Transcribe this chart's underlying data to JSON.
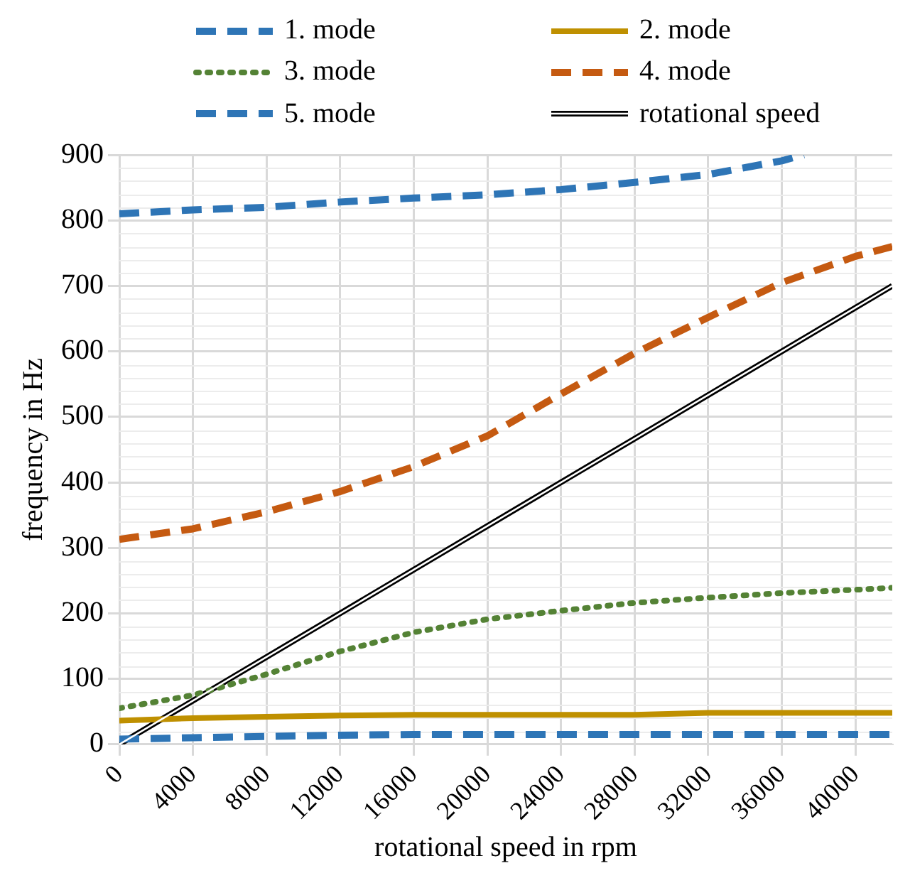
{
  "chart_data": {
    "type": "line",
    "xlabel": "rotational speed in rpm",
    "ylabel": "frequency in Hz",
    "x": [
      0,
      4000,
      8000,
      12000,
      16000,
      20000,
      24000,
      28000,
      32000,
      36000,
      40000,
      42000
    ],
    "xlim": [
      0,
      42000
    ],
    "xticks": [
      0,
      4000,
      8000,
      12000,
      16000,
      20000,
      24000,
      28000,
      32000,
      36000,
      40000
    ],
    "ylim": [
      0,
      900
    ],
    "yticks": [
      0,
      100,
      200,
      300,
      400,
      500,
      600,
      700,
      800,
      900
    ],
    "grid": true,
    "legend": "top",
    "marker": "none",
    "series": [
      {
        "name": "1. mode",
        "color": "#2e75b6",
        "line_style": "dashed",
        "values": [
          8,
          10,
          12,
          14,
          15,
          15,
          15,
          15,
          15,
          15,
          15,
          15
        ]
      },
      {
        "name": "2. mode",
        "color": "#bf9000",
        "line_style": "solid",
        "values": [
          36,
          40,
          42,
          44,
          45,
          45,
          45,
          45,
          48,
          48,
          48,
          48
        ]
      },
      {
        "name": "3. mode",
        "color": "#548235",
        "line_style": "dotted",
        "values": [
          55,
          75,
          107,
          142,
          171,
          191,
          204,
          216,
          224,
          231,
          236,
          239
        ]
      },
      {
        "name": "4. mode",
        "color": "#c55a11",
        "line_style": "dashed",
        "values": [
          313,
          329,
          355,
          386,
          424,
          471,
          535,
          597,
          652,
          705,
          745,
          760
        ]
      },
      {
        "name": "5. mode",
        "color": "#2e75b6",
        "line_style": "dashed",
        "x": [
          0,
          4000,
          8000,
          12000,
          16000,
          20000,
          24000,
          28000,
          32000,
          36000,
          37200
        ],
        "values": [
          810,
          816,
          820,
          828,
          834,
          839,
          847,
          858,
          870,
          891,
          900
        ]
      },
      {
        "name": "rotational speed",
        "color": "#000000",
        "line_style": "solid",
        "x": [
          0,
          42000
        ],
        "values": [
          0,
          700
        ]
      }
    ]
  }
}
